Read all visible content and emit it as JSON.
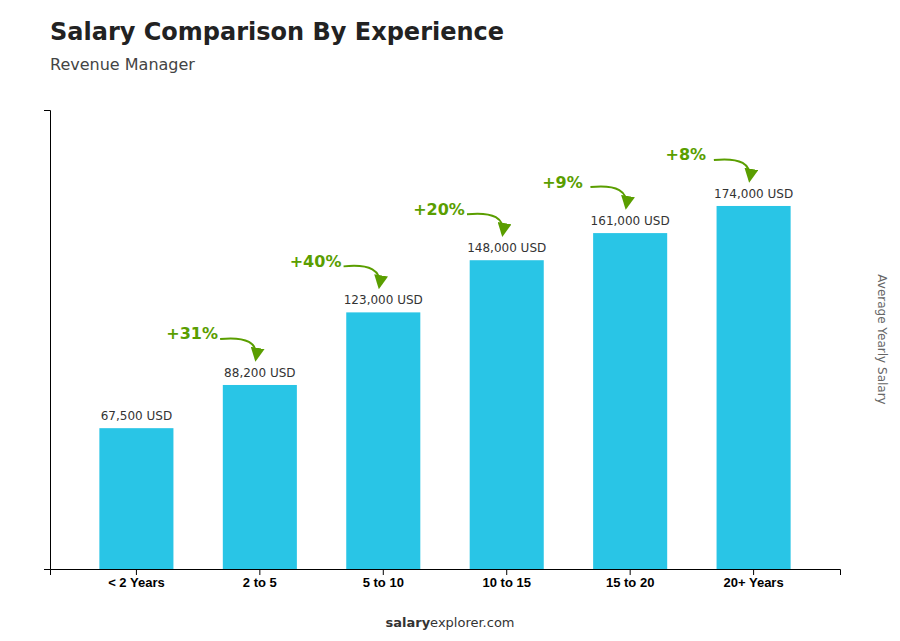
{
  "chart_data": {
    "type": "bar",
    "title": "Salary Comparison By Experience",
    "subtitle": "Revenue Manager",
    "ylabel": "Average Yearly Salary",
    "categories": [
      "< 2 Years",
      "2 to 5",
      "5 to 10",
      "10 to 15",
      "15 to 20",
      "20+ Years"
    ],
    "values": [
      67500,
      88200,
      123000,
      148000,
      161000,
      174000
    ],
    "value_labels": [
      "67,500 USD",
      "88,200 USD",
      "123,000 USD",
      "148,000 USD",
      "161,000 USD",
      "174,000 USD"
    ],
    "data_labels": true,
    "color": "#29c5e6",
    "ylim": [
      0,
      220000
    ],
    "tick_labels": "x",
    "grid": false,
    "annotations": [
      "+31%",
      "+40%",
      "+20%",
      "+9%",
      "+8%"
    ],
    "footer": [
      "salary",
      "explorer.com"
    ]
  }
}
